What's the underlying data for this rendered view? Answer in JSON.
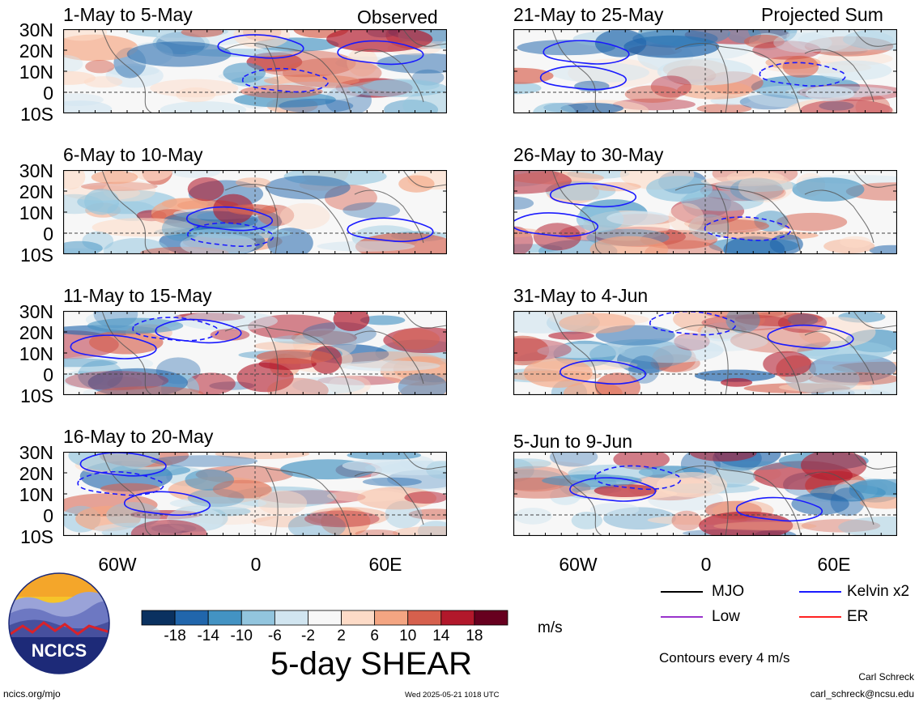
{
  "corner_labels": {
    "observed": "Observed",
    "projected": "Projected Sum"
  },
  "panels": [
    {
      "title": "1-May to 5-May"
    },
    {
      "title": "6-May to 10-May"
    },
    {
      "title": "11-May to 15-May"
    },
    {
      "title": "16-May to 20-May"
    },
    {
      "title": "21-May to 25-May"
    },
    {
      "title": "26-May to 30-May"
    },
    {
      "title": "31-May to 4-Jun"
    },
    {
      "title": "5-Jun to 9-Jun"
    }
  ],
  "lat_labels": [
    "30N",
    "20N",
    "10N",
    "0",
    "10S"
  ],
  "lon_labels": [
    "60W",
    "0",
    "60E"
  ],
  "colorbar": {
    "colors": [
      "#0a3160",
      "#2166ac",
      "#4393c3",
      "#92c5de",
      "#d1e5f0",
      "#f7f7f7",
      "#fddbc7",
      "#f4a582",
      "#d6604d",
      "#b2182b",
      "#67001f"
    ],
    "ticks": [
      "-18",
      "-14",
      "-10",
      "-6",
      "-2",
      "2",
      "6",
      "10",
      "14",
      "18"
    ],
    "units": "m/s"
  },
  "main_title": "5-day SHEAR",
  "legend": [
    {
      "label": "MJO",
      "color": "#000000"
    },
    {
      "label": "Kelvin x2",
      "color": "#1a1aff"
    },
    {
      "label": "Low",
      "color": "#9933cc"
    },
    {
      "label": "ER",
      "color": "#ff2222"
    }
  ],
  "contour_note": "Contours every 4 m/s",
  "logo_text": "NCICS",
  "footer": {
    "website": "ncics.org/mjo",
    "timestamp": "Wed 2025-05-21 1018 UTC",
    "author": "Carl Schreck",
    "email": "carl_schreck@ncsu.edu"
  }
}
